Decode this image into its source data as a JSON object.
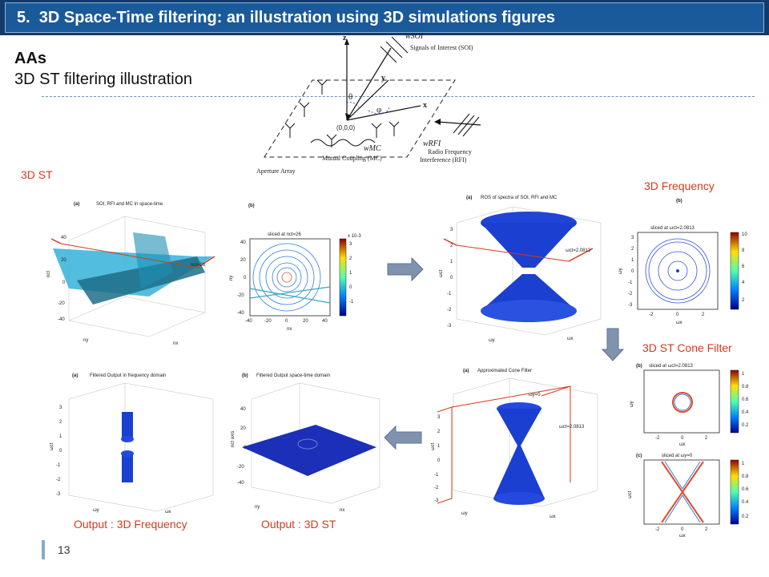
{
  "slide": {
    "title": "5.  3D Space-Time filtering: an illustration using 3D simulations figures",
    "heading": "AAs",
    "subheading": "3D ST filtering illustration",
    "page_number": "13"
  },
  "diagram": {
    "axis_z": "z",
    "axis_y": "y",
    "axis_x": "x",
    "theta": "θ",
    "phi": "φ",
    "origin": "(0,0,0)",
    "w_soi": "wSOI",
    "soi_label": "Signals of Interest (SOI)",
    "w_mc": "wMC",
    "mc_label": "Mutual Coupling (MC)",
    "w_rfi": "wRFI",
    "rfi_label_1": "Radio Frequency",
    "rfi_label_2": "Interference (RFI)",
    "aperture_label": "Aperture Array"
  },
  "labels": {
    "st3d": "3D ST",
    "freq3d": "3D Frequency",
    "cone_filter": "3D ST Cone Filter",
    "out_freq": "Output : 3D Frequency",
    "out_st": "Output : 3D ST"
  },
  "figures": {
    "fig1": {
      "tag": "(a)",
      "title": "SOI, RFI and MC in space-time",
      "ylabel": "nct",
      "xlabel": "nx",
      "zlabel": "ny",
      "annot": "nct=26",
      "ticks": [
        "40",
        "20",
        "0",
        "-20",
        "-40"
      ]
    },
    "fig2": {
      "tag": "(b)",
      "title": "sliced at nct=26",
      "ylabel": "ny",
      "xlabel": "nx",
      "ticks_x": [
        "-40",
        "-20",
        "0",
        "20",
        "40"
      ],
      "ticks_y": [
        "40",
        "20",
        "0",
        "-20",
        "-40"
      ],
      "cbar": [
        "3",
        "2",
        "1",
        "0",
        "-1"
      ],
      "cbar_exp": "x 10-3"
    },
    "fig3": {
      "tag": "(a)",
      "title": "ROS of spectra of SOI, RFI and MC",
      "ylabel": "ωct",
      "xlabel": "ωx",
      "zlabel": "ωy",
      "annot": "ωct=2.0813",
      "ticks": [
        "3",
        "2",
        "1",
        "0",
        "-1",
        "-2",
        "-3"
      ]
    },
    "fig4": {
      "tag": "(b)",
      "title": "sliced at ωct=2.0813",
      "ylabel": "ωy",
      "xlabel": "ωx",
      "ticks_x": [
        "-2",
        "0",
        "2"
      ],
      "ticks_y": [
        "3",
        "2",
        "1",
        "0",
        "-1",
        "-2",
        "-3"
      ],
      "cbar": [
        "10",
        "8",
        "6",
        "4",
        "2"
      ]
    },
    "fig5": {
      "tag": "(a)",
      "title": "Filtered Output in frequency domain",
      "ylabel": "ωct",
      "xlabel": "ωx",
      "zlabel": "ωy",
      "ticks": [
        "3",
        "2",
        "1",
        "0",
        "-1",
        "-2",
        "-3"
      ]
    },
    "fig6": {
      "tag": "(b)",
      "title": "Filtered Output space-time domain",
      "ylabel": "nct axis",
      "xlabel": "nx",
      "zlabel": "ny",
      "ticks": [
        "40",
        "20",
        "0",
        "-20",
        "-40"
      ]
    },
    "fig7": {
      "tag": "(a)",
      "title": "Approximated Cone Filter",
      "ylabel": "ωct",
      "xlabel": "ωx",
      "zlabel": "ωy",
      "annot1": "ωy=0",
      "annot2": "ωct=2.0813",
      "ticks": [
        "3",
        "2",
        "1",
        "0",
        "-1",
        "-2",
        "-3"
      ]
    },
    "fig8": {
      "tag": "(b)",
      "title": "sliced at ωct=2.0813",
      "ylabel": "ωy",
      "xlabel": "ωx",
      "ticks_x": [
        "-2",
        "0",
        "2"
      ],
      "cbar": [
        "1",
        "0.8",
        "0.6",
        "0.4",
        "0.2"
      ]
    },
    "fig9": {
      "tag": "(c)",
      "title": "sliced at ωy=0",
      "ylabel": "ωct",
      "xlabel": "ωx",
      "ticks_x": [
        "-2",
        "0",
        "2"
      ],
      "cbar": [
        "1",
        "0.8",
        "0.6",
        "0.4",
        "0.2"
      ]
    }
  },
  "colors": {
    "title_bg": "#1a5a9a",
    "accent_red": "#d53a1e",
    "plot_blue": "#1b3fd1",
    "arrow_fill": "#7f93ad"
  }
}
